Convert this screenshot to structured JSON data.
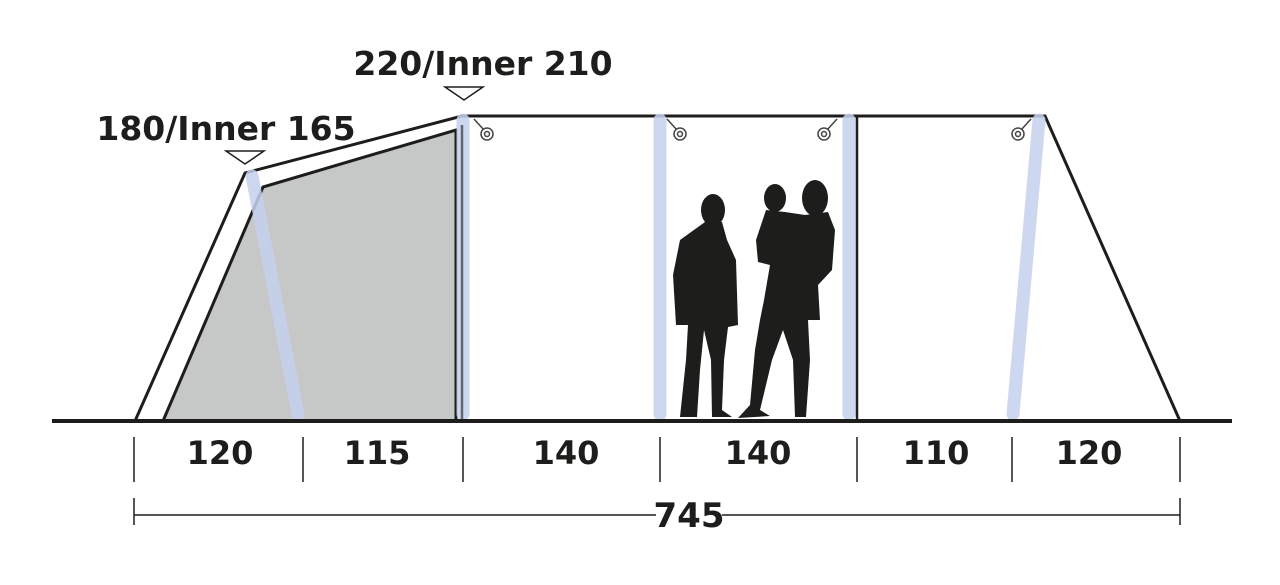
{
  "heights": {
    "side": "180/Inner 165",
    "center": "220/Inner 210"
  },
  "segments": [
    "120",
    "115",
    "140",
    "140",
    "110",
    "120"
  ],
  "total_length": "745",
  "colors": {
    "outline": "#1d1d1b",
    "inner_tent": "#c6c8c7",
    "air_pole": "#c5d1ee",
    "silhouette": "#1d1d1b"
  }
}
